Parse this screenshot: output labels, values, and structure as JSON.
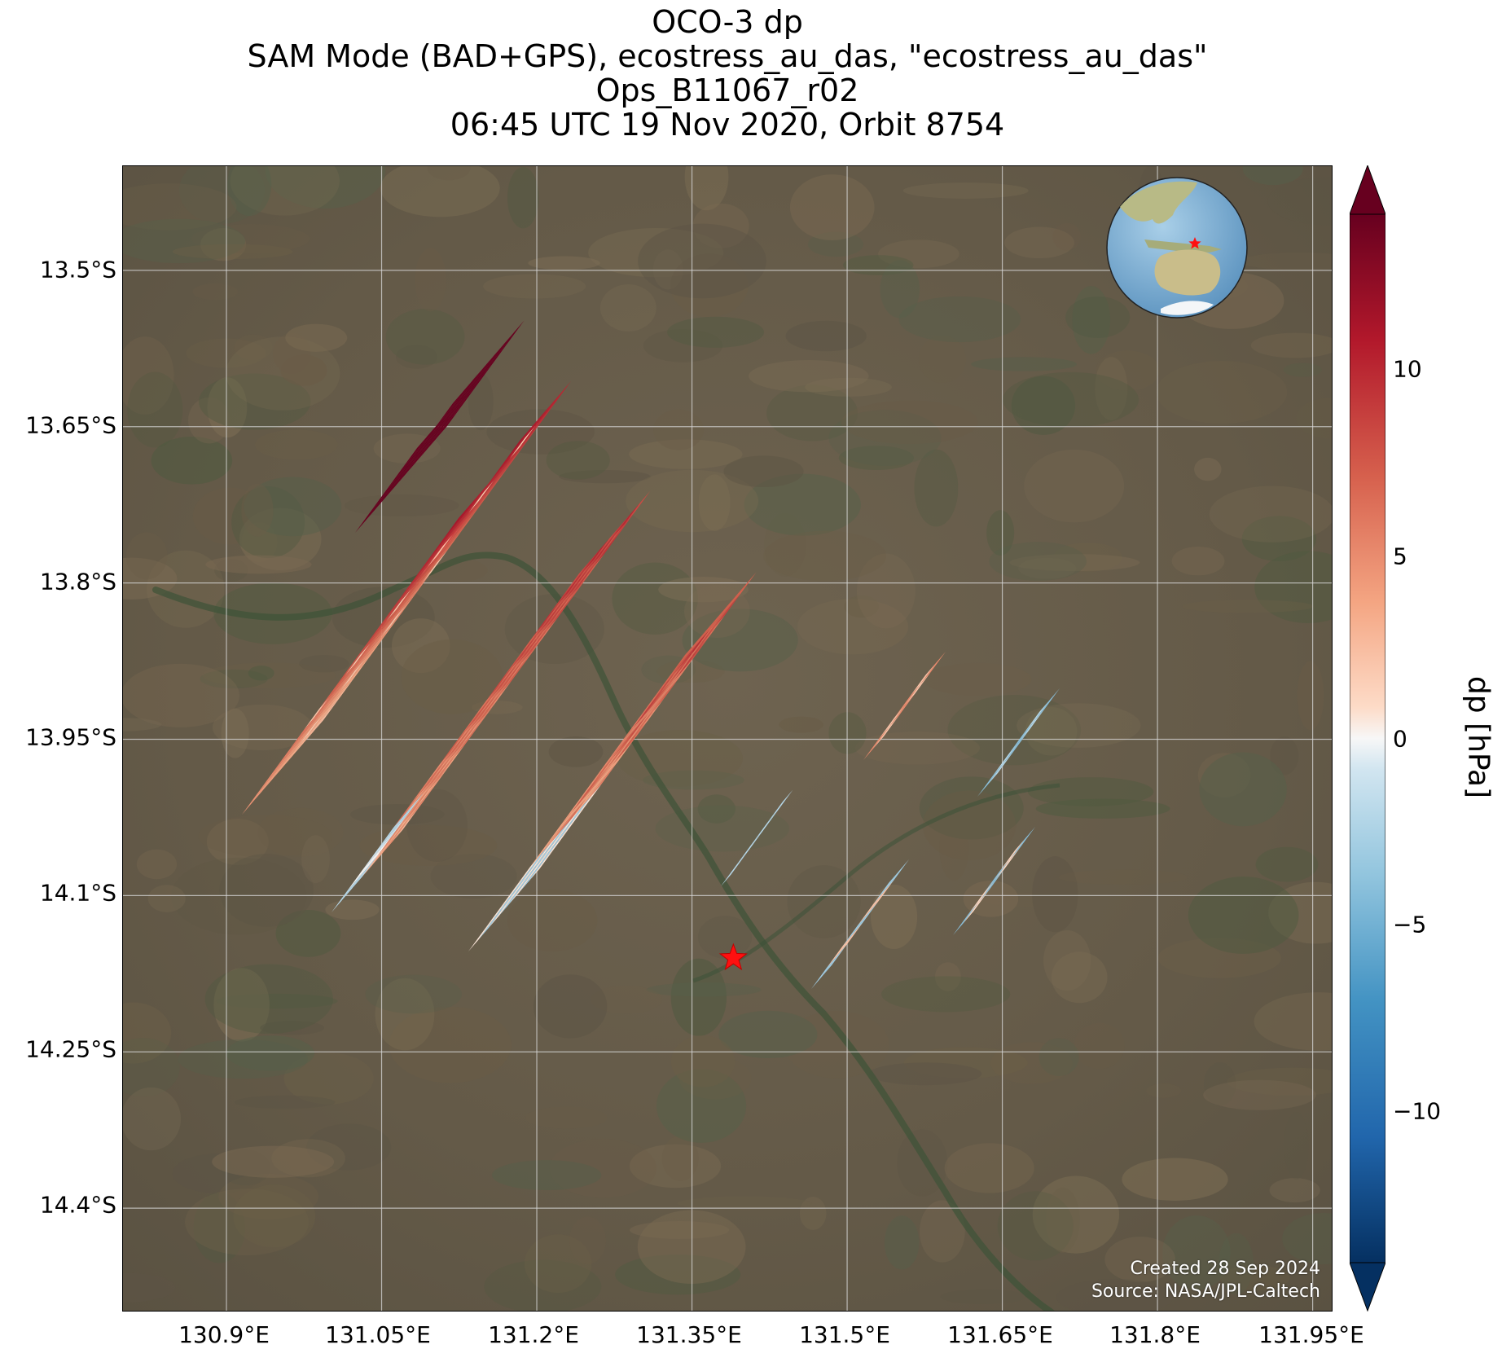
{
  "title": {
    "line1": "OCO-3 dp",
    "line2": "SAM Mode (BAD+GPS), ecostress_au_das, \"ecostress_au_das\"",
    "line3": "Ops_B11067_r02",
    "line4": "06:45 UTC 19 Nov 2020, Orbit 8754"
  },
  "axes": {
    "lat_ticks": [
      "13.5°S",
      "13.65°S",
      "13.8°S",
      "13.95°S",
      "14.1°S",
      "14.25°S",
      "14.4°S"
    ],
    "lon_ticks": [
      "130.9°E",
      "131.05°E",
      "131.2°E",
      "131.35°E",
      "131.5°E",
      "131.65°E",
      "131.8°E",
      "131.95°E"
    ]
  },
  "colorbar": {
    "label": "dp [hPa]",
    "ticks": [
      "10",
      "5",
      "0",
      "−5",
      "−10"
    ],
    "range": [
      -14,
      14
    ],
    "colormap": "RdBu_r"
  },
  "credits": {
    "created": "Created 28 Sep 2024",
    "source": "Source: NASA/JPL-Caltech"
  },
  "chart_data": {
    "type": "heatmap",
    "map_extent": {
      "lon": [
        130.8,
        131.97
      ],
      "lat": [
        -14.5,
        -13.4
      ]
    },
    "target_marker": {
      "lon": 131.39,
      "lat": -14.16,
      "symbol": "red-star"
    },
    "inset_globe_marker": {
      "symbol": "red-star",
      "region": "Northern Australia"
    },
    "value_range": [
      -14,
      14
    ],
    "colors": {
      "high": "#67001f",
      "mid": "#f7f7f7",
      "low": "#053061"
    }
  }
}
